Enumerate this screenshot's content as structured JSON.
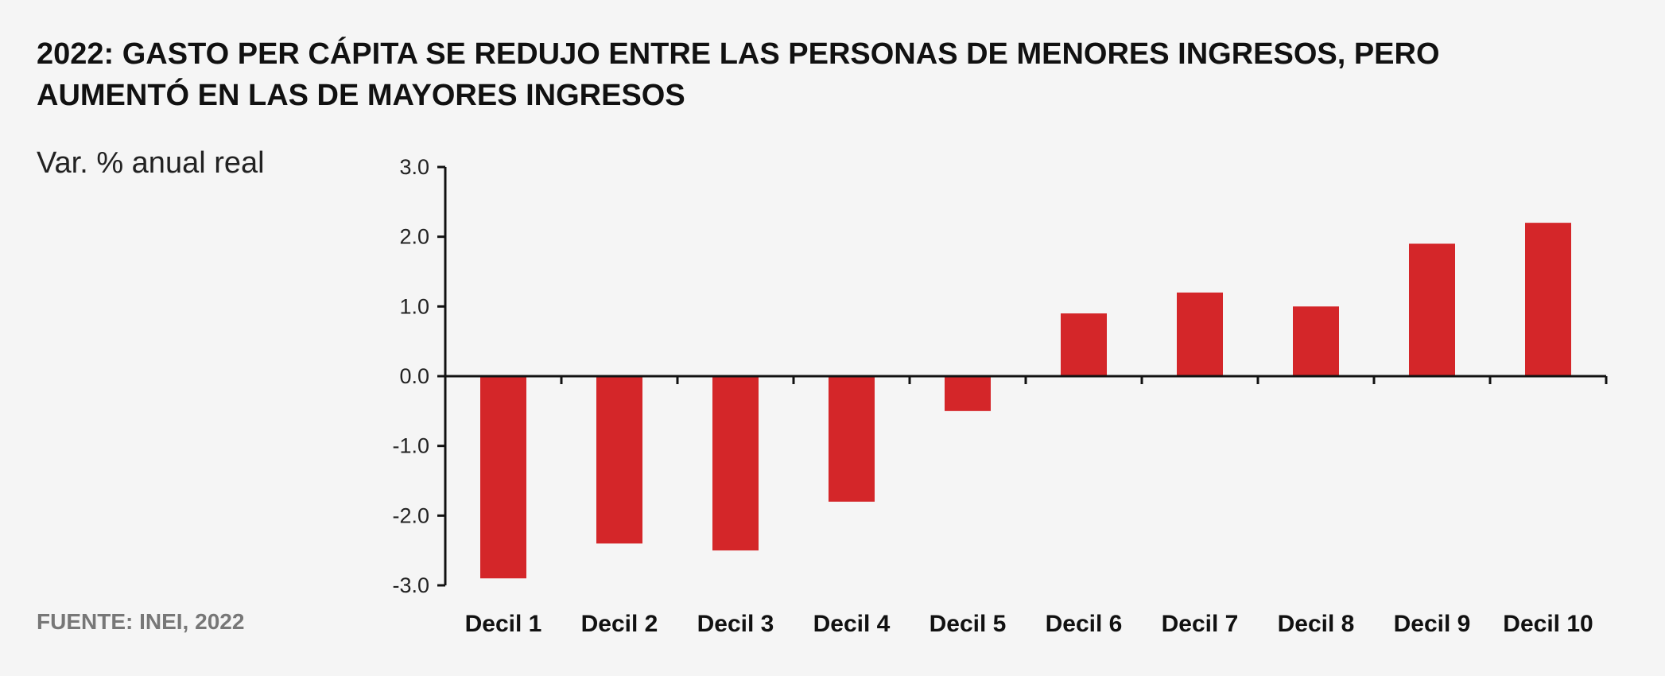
{
  "title": "2022: GASTO PER CÁPITA SE REDUJO ENTRE LAS PERSONAS DE MENORES INGRESOS, PERO AUMENTÓ EN LAS DE MAYORES INGRESOS",
  "source": "FUENTE: INEI, 2022",
  "colors": {
    "bar": "#d42629",
    "axis": "#111111",
    "background": "#f5f5f5"
  },
  "chart_data": {
    "type": "bar",
    "title": "2022: GASTO PER CÁPITA SE REDUJO ENTRE LAS PERSONAS DE MENORES INGRESOS, PERO AUMENTÓ EN LAS DE MAYORES INGRESOS",
    "ylabel": "Var. % anual real",
    "xlabel": "",
    "categories": [
      "Decil 1",
      "Decil 2",
      "Decil 3",
      "Decil 4",
      "Decil 5",
      "Decil 6",
      "Decil 7",
      "Decil 8",
      "Decil 9",
      "Decil 10"
    ],
    "values": [
      -2.9,
      -2.4,
      -2.5,
      -1.8,
      -0.5,
      0.9,
      1.2,
      1.0,
      1.9,
      2.2
    ],
    "ylim": [
      -3.0,
      3.0
    ],
    "yticks": [
      "3.0",
      "2.0",
      "1.0",
      "0.0",
      "-1.0",
      "-2.0",
      "-3.0"
    ],
    "grid": false,
    "legend": "none"
  }
}
